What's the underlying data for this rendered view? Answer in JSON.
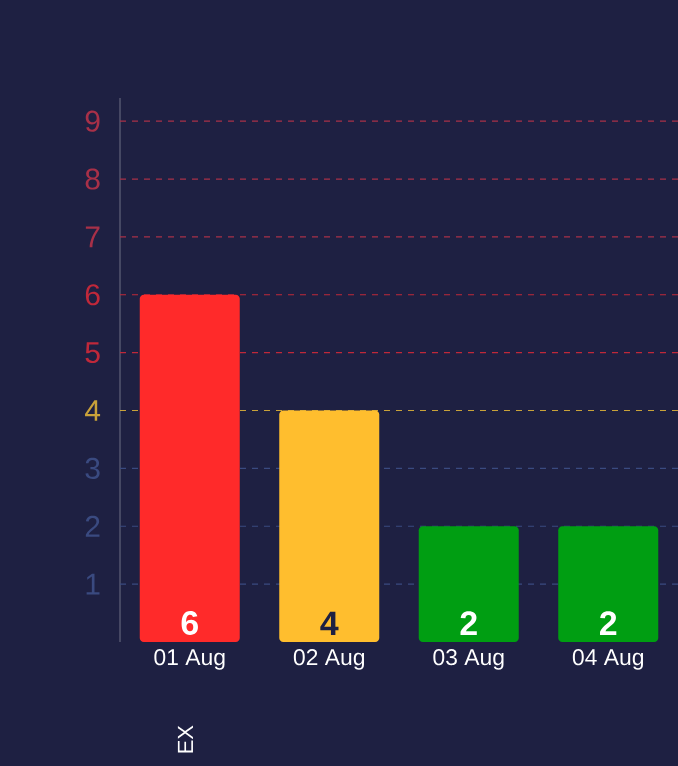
{
  "chart_data": {
    "type": "bar",
    "ylabel": "EX",
    "categories": [
      "01 Aug",
      "02 Aug",
      "03 Aug",
      "04 Aug"
    ],
    "values": [
      6,
      4,
      2,
      2
    ],
    "colors": [
      "#ff2a2a",
      "#ffbe2e",
      "#009e12",
      "#009e12"
    ],
    "data_labels": true,
    "ylim": [
      0,
      9.4
    ],
    "yticks": [
      1,
      2,
      3,
      4,
      5,
      6,
      7,
      8,
      9
    ],
    "ref_lines": [
      {
        "axis": "y",
        "value": 1,
        "color": "#3a4a80",
        "line_style": "dashed"
      },
      {
        "axis": "y",
        "value": 2,
        "color": "#3a4a80",
        "line_style": "dashed"
      },
      {
        "axis": "y",
        "value": 3,
        "color": "#3a4a80",
        "line_style": "dashed"
      },
      {
        "axis": "y",
        "value": 4,
        "color": "#c9a23a",
        "line_style": "dashed"
      },
      {
        "axis": "y",
        "value": 5,
        "color": "#c0283a",
        "line_style": "dashed"
      },
      {
        "axis": "y",
        "value": 6,
        "color": "#c0283a",
        "line_style": "dashed"
      },
      {
        "axis": "y",
        "value": 7,
        "color": "#a83048",
        "line_style": "dashed"
      },
      {
        "axis": "y",
        "value": 8,
        "color": "#a83048",
        "line_style": "dashed"
      },
      {
        "axis": "y",
        "value": 9,
        "color": "#a83048",
        "line_style": "dashed"
      }
    ]
  }
}
